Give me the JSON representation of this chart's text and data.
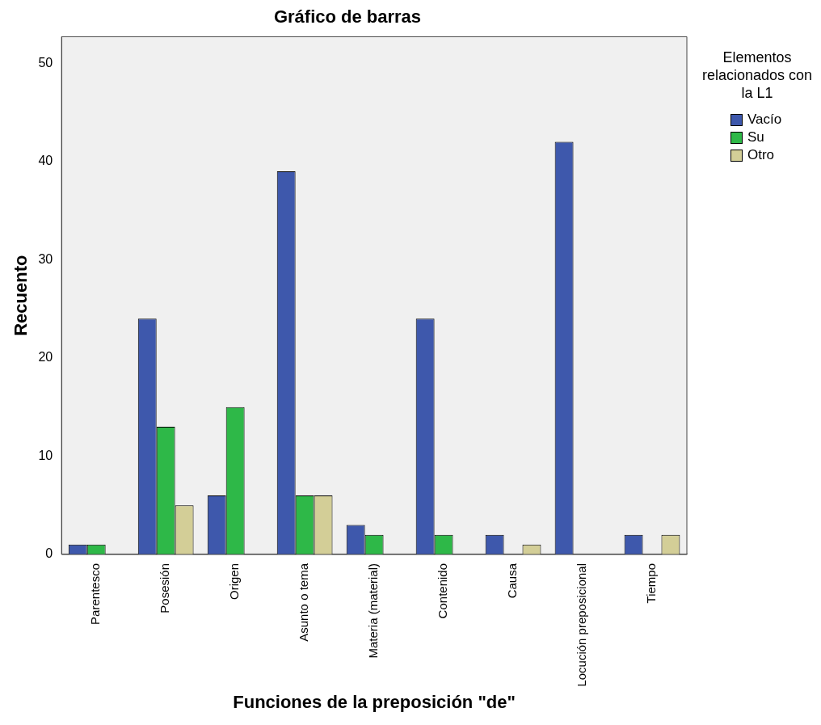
{
  "chart_data": {
    "type": "bar",
    "title": "Gráfico de barras",
    "xlabel": "Funciones de la preposición \"de\"",
    "ylabel": "Recuento",
    "legend_title": "Elementos relacionados con la L1",
    "legend": "right",
    "categories": [
      "Parentesco",
      "Posesión",
      "Origen",
      "Asunto o tema",
      "Materia (material)",
      "Contenido",
      "Causa",
      "Locución preposicional",
      "Tiempo"
    ],
    "series": [
      {
        "name": "Vacío",
        "color": "#3e58ac",
        "values": [
          1,
          24,
          6,
          39,
          3,
          24,
          2,
          42,
          2
        ]
      },
      {
        "name": "Su",
        "color": "#2eb848",
        "values": [
          1,
          13,
          15,
          6,
          2,
          2,
          null,
          null,
          null
        ]
      },
      {
        "name": "Otro",
        "color": "#d3ce97",
        "values": [
          null,
          5,
          null,
          6,
          null,
          null,
          1,
          null,
          2
        ]
      }
    ],
    "ylim": [
      0,
      52.7
    ],
    "yticks": [
      0,
      10,
      20,
      30,
      40,
      50
    ],
    "grid": false
  }
}
